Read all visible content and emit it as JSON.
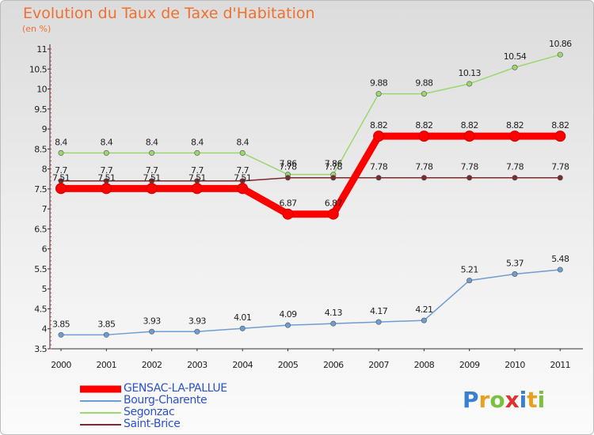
{
  "header": {
    "title": "Evolution du Taux de Taxe d'Habitation",
    "subtitle": "(en %)"
  },
  "colors": {
    "GENSAC-LA-PALLUE": "#ff0000",
    "Bourg-Charente": "#6e9dd1",
    "Segonzac": "#9ad86e",
    "Saint-Brice": "#7a2b2b",
    "title": "#f07030",
    "legend_text": "#2b53c9"
  },
  "chart_data": {
    "type": "line",
    "title": "Evolution du Taux de Taxe d'Habitation",
    "ylabel": "(en %)",
    "xlabel": "",
    "x": [
      "2000",
      "2001",
      "2002",
      "2003",
      "2004",
      "2005",
      "2006",
      "2007",
      "2008",
      "2009",
      "2010",
      "2011"
    ],
    "ylim": [
      3.5,
      11
    ],
    "yticks": [
      3.5,
      4,
      4.5,
      5,
      5.5,
      6,
      6.5,
      7,
      7.5,
      8,
      8.5,
      9,
      9.5,
      10,
      10.5,
      11
    ],
    "grid": false,
    "legend_position": "bottom-left",
    "series": [
      {
        "name": "Segonzac",
        "color": "#9ad86e",
        "values": [
          8.4,
          8.4,
          8.4,
          8.4,
          8.4,
          7.86,
          7.86,
          9.88,
          9.88,
          10.13,
          10.54,
          10.86
        ]
      },
      {
        "name": "Saint-Brice",
        "color": "#7a2b2b",
        "values": [
          7.7,
          7.7,
          7.7,
          7.7,
          7.7,
          7.78,
          7.78,
          7.78,
          7.78,
          7.78,
          7.78,
          7.78
        ]
      },
      {
        "name": "Bourg-Charente",
        "color": "#6e9dd1",
        "values": [
          3.85,
          3.85,
          3.93,
          3.93,
          4.01,
          4.09,
          4.13,
          4.17,
          4.21,
          5.21,
          5.37,
          5.48
        ]
      },
      {
        "name": "GENSAC-LA-PALLUE",
        "color": "#ff0000",
        "values": [
          7.51,
          7.51,
          7.51,
          7.51,
          7.51,
          6.87,
          6.87,
          8.82,
          8.82,
          8.82,
          8.82,
          8.82
        ]
      }
    ]
  },
  "legend": {
    "items": [
      {
        "label": "GENSAC-LA-PALLUE",
        "color": "#ff0000"
      },
      {
        "label": "Bourg-Charente",
        "color": "#6e9dd1"
      },
      {
        "label": "Segonzac",
        "color": "#9ad86e"
      },
      {
        "label": "Saint-Brice",
        "color": "#7a2b2b"
      }
    ]
  },
  "logo": {
    "letters": [
      "P",
      "r",
      "o",
      "x",
      "i",
      "t",
      "i"
    ],
    "colors": [
      "#3a7fd0",
      "#e8a020",
      "#7cc040",
      "#e03030",
      "#3a7fd0",
      "#e8a020",
      "#7cc040"
    ]
  }
}
